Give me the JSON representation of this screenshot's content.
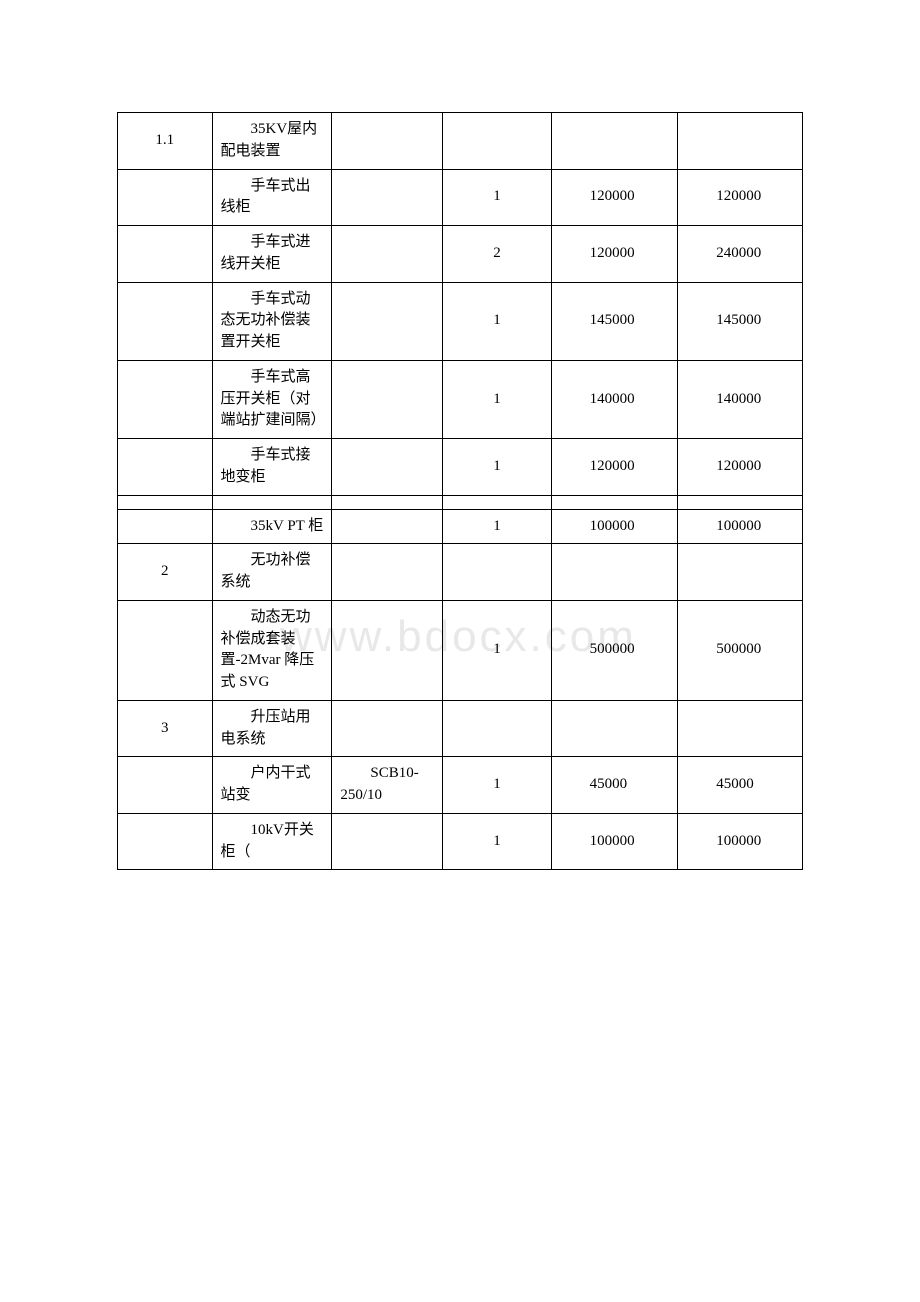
{
  "watermark": "www.bdocx.com",
  "table": {
    "columns": [
      {
        "width": "13.8%",
        "align": "center"
      },
      {
        "width": "17.5%",
        "align": "left"
      },
      {
        "width": "16.2%",
        "align": "left"
      },
      {
        "width": "15.8%",
        "align": "center"
      },
      {
        "width": "18.5%",
        "align": "left"
      },
      {
        "width": "18.2%",
        "align": "left"
      }
    ],
    "border_color": "#000000",
    "background_color": "#ffffff",
    "text_color": "#000000",
    "font_size": 15,
    "rows": [
      {
        "cells": [
          "1.1",
          "　　35KV屋内配电装置",
          "",
          "",
          "",
          ""
        ]
      },
      {
        "cells": [
          "",
          "　　手车式出线柜",
          "",
          "1",
          "　　120000",
          "　　120000"
        ]
      },
      {
        "cells": [
          "",
          "　　手车式进线开关柜",
          "",
          "2",
          "　　120000",
          "　　240000"
        ]
      },
      {
        "cells": [
          "",
          "　　手车式动态无功补偿装置开关柜",
          "",
          "1",
          "　　145000",
          "　　145000"
        ]
      },
      {
        "cells": [
          "",
          "　　手车式高压开关柜（对端站扩建间隔）",
          "",
          "1",
          "　　140000",
          "　　140000"
        ]
      },
      {
        "cells": [
          "",
          "　　手车式接地变柜",
          "",
          "1",
          "　　120000",
          "　　120000"
        ]
      },
      {
        "cells": [
          "",
          "",
          "",
          "",
          "",
          ""
        ],
        "empty": true
      },
      {
        "cells": [
          "",
          "　　35kV PT 柜",
          "",
          "1",
          "　　100000",
          "　　100000"
        ]
      },
      {
        "cells": [
          "2",
          "　　无功补偿系统",
          "",
          "",
          "",
          ""
        ]
      },
      {
        "cells": [
          "",
          "　　动态无功补偿成套装置-2Mvar 降压式 SVG",
          "",
          "1",
          "　　500000",
          "　　500000"
        ]
      },
      {
        "cells": [
          "3",
          "　　升压站用电系统",
          "",
          "",
          "",
          ""
        ]
      },
      {
        "cells": [
          "",
          "　　户内干式站变",
          "　　SCB10-250/10",
          "1",
          "　　45000",
          "　　45000"
        ]
      },
      {
        "cells": [
          "",
          "　　10kV开关柜（",
          "",
          "1",
          "　　100000",
          "　　100000"
        ]
      }
    ]
  }
}
